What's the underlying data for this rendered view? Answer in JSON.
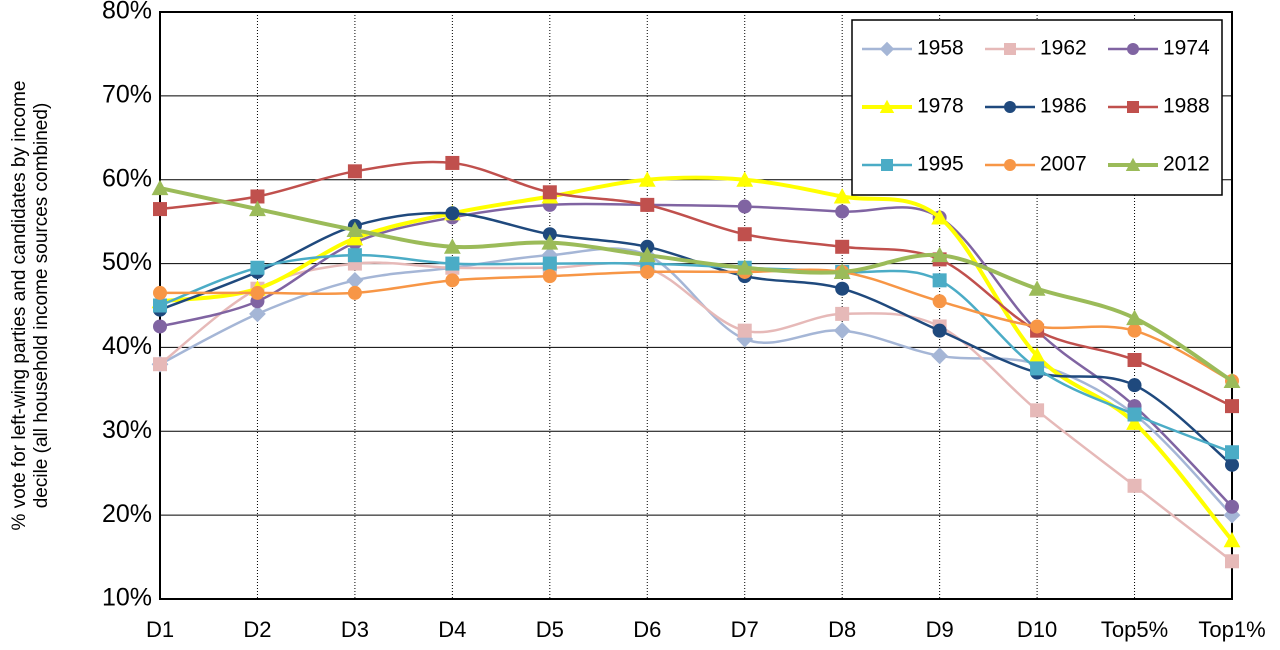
{
  "chart_data": {
    "type": "line",
    "ylabel": [
      "% vote for left-wing parties and candidates by income",
      "decile (all household income sources combined)"
    ],
    "categories": [
      "D1",
      "D2",
      "D3",
      "D4",
      "D5",
      "D6",
      "D7",
      "D8",
      "D9",
      "D10",
      "Top5%",
      "Top1%"
    ],
    "ylim": [
      10,
      80
    ],
    "yticks": [
      {
        "value": 10,
        "label": "10%"
      },
      {
        "value": 20,
        "label": "20%"
      },
      {
        "value": 30,
        "label": "30%"
      },
      {
        "value": 40,
        "label": "40%"
      },
      {
        "value": 50,
        "label": "50%"
      },
      {
        "value": 60,
        "label": "60%"
      },
      {
        "value": 70,
        "label": "70%"
      },
      {
        "value": 80,
        "label": "80%"
      }
    ],
    "grid": true,
    "legend": "top-right",
    "series": [
      {
        "name": "1958",
        "color": "#a5b6d6",
        "marker": "diamond",
        "values": [
          38,
          44,
          48,
          49.5,
          51,
          51,
          41,
          42,
          39,
          38,
          32,
          20
        ]
      },
      {
        "name": "1962",
        "color": "#e6b9b8",
        "marker": "square",
        "values": [
          38,
          47,
          50,
          49.5,
          49.5,
          49.5,
          42,
          44,
          42.5,
          32.5,
          23.5,
          14.5
        ]
      },
      {
        "name": "1974",
        "color": "#8064a2",
        "marker": "circle",
        "values": [
          42.5,
          45.5,
          52.5,
          55.5,
          57,
          57,
          56.8,
          56.2,
          55.5,
          42,
          33,
          21
        ]
      },
      {
        "name": "1978",
        "color": "#ffff00",
        "marker": "triangle",
        "values": [
          45.5,
          47,
          53,
          56,
          58,
          60,
          60,
          58,
          55.5,
          39,
          31,
          17
        ]
      },
      {
        "name": "1986",
        "color": "#1f497d",
        "marker": "circle",
        "values": [
          44.5,
          49,
          54.5,
          56,
          53.5,
          52,
          48.5,
          47,
          42,
          37,
          35.5,
          26
        ]
      },
      {
        "name": "1988",
        "color": "#c0504d",
        "marker": "square",
        "values": [
          56.5,
          58,
          61,
          62,
          58.5,
          57,
          53.5,
          52,
          50.5,
          42,
          38.5,
          33
        ]
      },
      {
        "name": "1995",
        "color": "#4bacc6",
        "marker": "square",
        "values": [
          45,
          49.5,
          51,
          50,
          50,
          50,
          49.5,
          49,
          48,
          37.5,
          32,
          27.5
        ]
      },
      {
        "name": "2007",
        "color": "#f79646",
        "marker": "circle",
        "values": [
          46.5,
          46.5,
          46.5,
          48,
          48.5,
          49,
          49,
          49,
          45.5,
          42.5,
          42,
          36
        ]
      },
      {
        "name": "2012",
        "color": "#9bbb59",
        "marker": "triangle",
        "values": [
          59,
          56.5,
          54,
          52,
          52.5,
          51,
          49.5,
          49,
          51,
          47,
          43.5,
          36
        ]
      }
    ]
  }
}
